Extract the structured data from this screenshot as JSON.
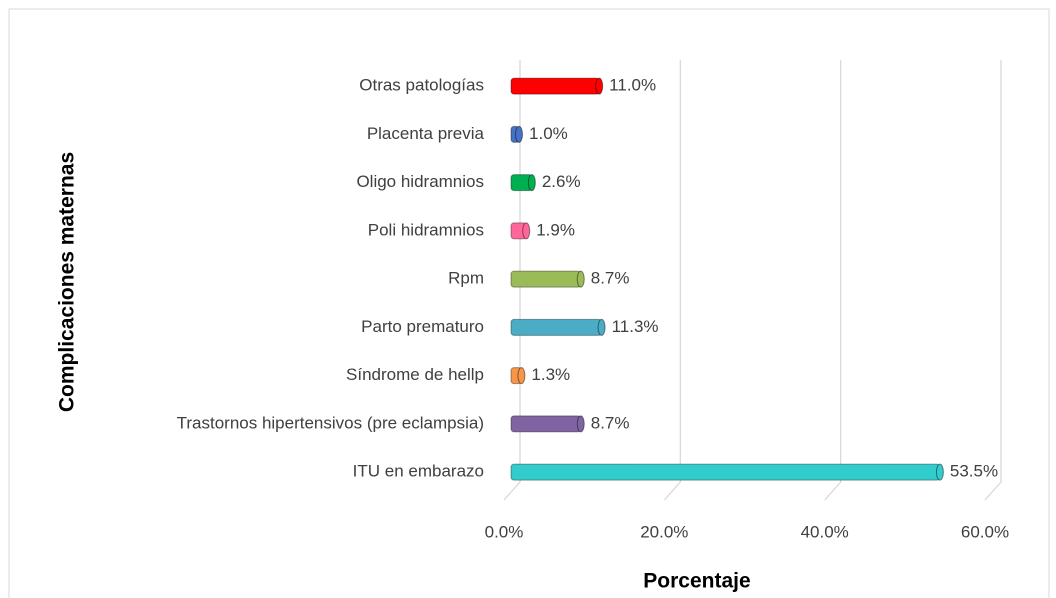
{
  "chart_data": {
    "type": "bar",
    "orientation": "horizontal",
    "xlabel": "Porcentaje",
    "ylabel": "Complicaciones maternas",
    "categories": [
      "Otras patologías",
      "Placenta previa",
      "Oligo hidramnios",
      "Poli hidramnios",
      "Rpm",
      "Parto prematuro",
      "Síndrome de hellp",
      "Trastornos hipertensivos (pre eclampsia)",
      "ITU en embarazo"
    ],
    "values": [
      11.0,
      1.0,
      2.6,
      1.9,
      8.7,
      11.3,
      1.3,
      8.7,
      53.5
    ],
    "value_labels": [
      "11.0%",
      "1.0%",
      "2.6%",
      "1.9%",
      "8.7%",
      "11.3%",
      "1.3%",
      "8.7%",
      "53.5%"
    ],
    "colors": [
      "#ff0000",
      "#4472c4",
      "#00b050",
      "#ff6699",
      "#9bbb59",
      "#4bacc6",
      "#f79646",
      "#8064a2",
      "#33cccc"
    ],
    "xlim": [
      0,
      60
    ],
    "xticks": [
      {
        "value": 0,
        "label": "0.0%"
      },
      {
        "value": 20,
        "label": "20.0%"
      },
      {
        "value": 40,
        "label": "40.0%"
      },
      {
        "value": 60,
        "label": "60.0%"
      }
    ],
    "grid": true
  }
}
